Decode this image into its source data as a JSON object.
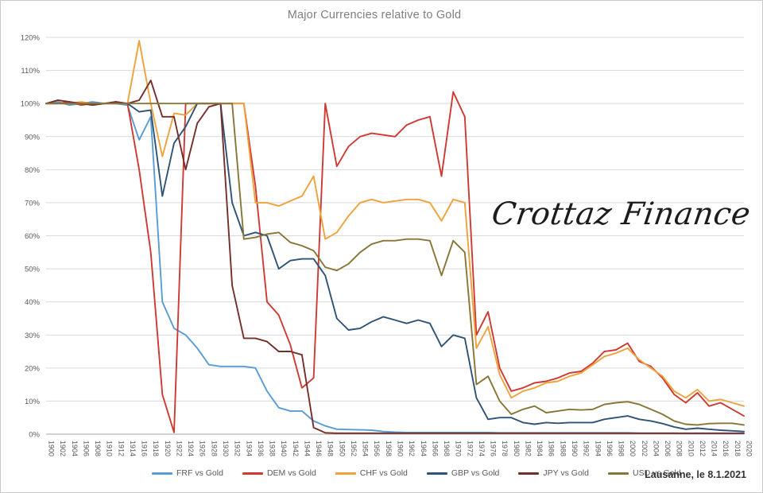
{
  "title": "Major Currencies relative to Gold",
  "watermark": "Crottaz Finance",
  "footer_note": "Lausanne, le 8.1.2021",
  "colors": {
    "grid": "#d9d9d9",
    "axis": "#a6a6a6",
    "tick_text": "#595959",
    "title_text": "#7f7f7f"
  },
  "chart_data": {
    "type": "line",
    "title": "Major Currencies relative to Gold",
    "xlabel": "",
    "ylabel": "",
    "ylim": [
      0,
      120
    ],
    "grid": "horizontal-only",
    "legend_position": "bottom",
    "y_tick_labels": [
      "0%",
      "10%",
      "20%",
      "30%",
      "40%",
      "50%",
      "60%",
      "70%",
      "80%",
      "90%",
      "100%",
      "110%",
      "120%"
    ],
    "x": [
      1900,
      1902,
      1904,
      1906,
      1908,
      1910,
      1912,
      1914,
      1916,
      1918,
      1920,
      1922,
      1924,
      1926,
      1928,
      1930,
      1932,
      1934,
      1936,
      1938,
      1940,
      1942,
      1944,
      1946,
      1948,
      1950,
      1952,
      1954,
      1956,
      1958,
      1960,
      1962,
      1964,
      1966,
      1968,
      1970,
      1972,
      1974,
      1976,
      1978,
      1980,
      1982,
      1984,
      1986,
      1988,
      1990,
      1992,
      1994,
      1996,
      1998,
      2000,
      2002,
      2004,
      2006,
      2008,
      2010,
      2012,
      2014,
      2016,
      2018,
      2020
    ],
    "series": [
      {
        "name": "FRF vs Gold",
        "color": "#5B9BD5",
        "values": [
          100,
          100.5,
          99.5,
          100,
          100.5,
          100,
          100,
          99.5,
          89,
          96,
          40,
          32,
          30,
          26,
          21,
          20.5,
          20.5,
          20.5,
          20,
          13,
          8,
          7,
          7,
          4,
          2.5,
          1.5,
          1.4,
          1.3,
          1.2,
          0.8,
          0.6,
          0.5,
          0.5,
          0.5,
          0.5,
          0.5,
          0.5,
          0.5,
          0.5,
          0.4,
          0.4,
          0.4,
          0.4,
          0.4,
          0.4,
          0.4,
          0.4,
          0.4,
          0.4,
          0.4,
          0.4,
          0.3,
          0.3,
          0.3,
          0.3,
          0.2,
          0.2,
          0.2,
          0.2,
          0.2,
          0.2
        ]
      },
      {
        "name": "DEM vs Gold",
        "color": "#CE3A32",
        "values": [
          100,
          100,
          100.5,
          99.5,
          100,
          100,
          100.5,
          100,
          80,
          55,
          12,
          0.5,
          100,
          100,
          100,
          100,
          100,
          100,
          75,
          40,
          36,
          27,
          14,
          17,
          100,
          81,
          87,
          90,
          91,
          90.5,
          90,
          93.5,
          95,
          96,
          78,
          103.5,
          96,
          30,
          37,
          20,
          13,
          14,
          15.5,
          16,
          17,
          18.5,
          19,
          21.5,
          25,
          25.5,
          27.5,
          22,
          20.5,
          17,
          12,
          9.5,
          12.5,
          8.5,
          9.5,
          7.5,
          5.5
        ]
      },
      {
        "name": "CHF vs Gold",
        "color": "#EFA23C",
        "values": [
          100,
          100,
          100,
          100.5,
          100,
          100,
          100,
          100,
          119,
          100,
          84,
          97,
          96.5,
          100,
          100,
          100,
          100,
          100,
          70,
          70,
          69,
          70.5,
          72,
          78,
          59,
          61,
          66,
          70,
          71,
          70,
          70.5,
          71,
          71,
          70,
          64.5,
          71,
          70,
          26,
          32.5,
          18,
          11,
          13,
          14,
          15.5,
          16,
          17.5,
          18.5,
          21,
          23.5,
          24.5,
          26,
          22.5,
          20,
          17.5,
          13,
          11,
          13.5,
          10,
          10.5,
          9.5,
          8.5
        ]
      },
      {
        "name": "GBP vs Gold",
        "color": "#2E5376",
        "values": [
          100,
          100,
          100,
          100,
          100,
          100,
          100,
          100,
          97.5,
          98,
          72,
          88,
          93,
          100,
          100,
          100,
          70,
          60,
          61,
          60,
          50,
          52.5,
          53,
          53,
          48,
          35,
          31.5,
          32,
          34,
          35.5,
          34.5,
          33.5,
          34.5,
          33.5,
          26.5,
          30,
          29,
          11,
          4.5,
          5,
          5,
          3.5,
          3,
          3.5,
          3.3,
          3.5,
          3.5,
          3.5,
          4.5,
          5,
          5.5,
          4.5,
          4,
          3.2,
          2.2,
          1.5,
          1.8,
          1.5,
          1.2,
          1,
          0.8
        ]
      },
      {
        "name": "JPY vs Gold",
        "color": "#742F2B",
        "values": [
          100,
          101,
          100.5,
          100,
          99.5,
          100,
          100.5,
          100,
          101,
          107,
          96,
          96,
          80,
          94,
          99,
          100,
          45,
          29,
          29,
          28,
          25,
          25,
          24,
          2,
          0.4,
          0.3,
          0.3,
          0.3,
          0.3,
          0.3,
          0.3,
          0.3,
          0.3,
          0.3,
          0.3,
          0.3,
          0.3,
          0.3,
          0.3,
          0.3,
          0.3,
          0.3,
          0.3,
          0.3,
          0.3,
          0.3,
          0.3,
          0.3,
          0.3,
          0.3,
          0.3,
          0.3,
          0.3,
          0.3,
          0.3,
          0.3,
          0.3,
          0.3,
          0.3,
          0.3,
          0.3
        ]
      },
      {
        "name": "USD vs Gold",
        "color": "#877637",
        "values": [
          100,
          100,
          100,
          100,
          100,
          100,
          100,
          100,
          100,
          100,
          100,
          100,
          100,
          100,
          100,
          100,
          100,
          59,
          59.5,
          60.5,
          61,
          58,
          57,
          55.5,
          50.5,
          49.5,
          51.5,
          55,
          57.5,
          58.5,
          58.5,
          59,
          59,
          58.5,
          48,
          58.5,
          55,
          15,
          17.5,
          10,
          6,
          7.5,
          8.5,
          6.5,
          7,
          7.5,
          7.3,
          7.5,
          9,
          9.5,
          9.8,
          9,
          7.5,
          6,
          4,
          3,
          2.8,
          3.2,
          3.3,
          3.3,
          2.8
        ]
      }
    ]
  }
}
